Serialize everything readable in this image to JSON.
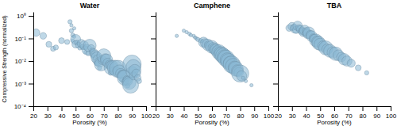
{
  "chart_data": [
    {
      "type": "scatter",
      "title": "Water",
      "xlabel": "Porosity (%)",
      "ylabel": "Compressive Strength (normalized)",
      "x": [
        22,
        27,
        31,
        34,
        36,
        40,
        44,
        46,
        47,
        47,
        48,
        48,
        49,
        49,
        50,
        50,
        51,
        52,
        53,
        54,
        55,
        56,
        57,
        57,
        58,
        59,
        60,
        61,
        62,
        62,
        63,
        64,
        65,
        65,
        66,
        67,
        67,
        68,
        69,
        70,
        71,
        72,
        73,
        74,
        75,
        75,
        76,
        77,
        78,
        79,
        80,
        81,
        82,
        83,
        83,
        84,
        85,
        85,
        86,
        87,
        87,
        88,
        89,
        90,
        90,
        91,
        91,
        92,
        93,
        94,
        95
      ],
      "values": [
        0.18,
        0.13,
        0.055,
        0.035,
        0.04,
        0.08,
        0.07,
        0.55,
        0.38,
        0.22,
        0.14,
        0.08,
        0.28,
        0.12,
        0.09,
        0.055,
        0.065,
        0.05,
        0.038,
        0.06,
        0.042,
        0.05,
        0.038,
        0.025,
        0.032,
        0.022,
        0.048,
        0.038,
        0.028,
        0.018,
        0.022,
        0.018,
        0.014,
        0.008,
        0.011,
        0.009,
        0.005,
        0.007,
        0.011,
        0.017,
        0.013,
        0.011,
        0.008,
        0.007,
        0.005,
        0.003,
        0.006,
        0.004,
        0.005,
        0.0038,
        0.0045,
        0.0035,
        0.0028,
        0.0025,
        0.0015,
        0.0022,
        0.0018,
        0.0012,
        0.0016,
        0.0013,
        0.0008,
        0.0011,
        0.00085,
        0.0072,
        0.0032,
        0.0055,
        0.0022,
        0.0038,
        0.0028,
        0.0018,
        0.0013
      ],
      "sizes": [
        8,
        7,
        6,
        5,
        5,
        6,
        5,
        4,
        3,
        4,
        4,
        3,
        3,
        3,
        12,
        8,
        5,
        6,
        4,
        9,
        5,
        10,
        4,
        3,
        12,
        5,
        16,
        7,
        6,
        4,
        10,
        11,
        14,
        5,
        13,
        12,
        4,
        16,
        10,
        18,
        11,
        15,
        12,
        10,
        17,
        5,
        14,
        7,
        20,
        9,
        23,
        16,
        12,
        10,
        5,
        15,
        20,
        7,
        7,
        11,
        4,
        17,
        21,
        25,
        14,
        19,
        9,
        15,
        10,
        7,
        5
      ],
      "color": "#8BB8D4",
      "log": "y",
      "grid": false,
      "xlim": [
        20,
        100
      ],
      "xticks": [
        20,
        30,
        40,
        50,
        60,
        70,
        80,
        90,
        100
      ],
      "ylim": [
        0.0001,
        1.5
      ],
      "yticks": [
        {
          "value": 0.0001,
          "label": "10⁻⁴"
        },
        {
          "value": 0.001,
          "label": "10⁻³"
        },
        {
          "value": 0.01,
          "label": "10⁻²"
        },
        {
          "value": 0.1,
          "label": "10⁻¹"
        },
        {
          "value": 1,
          "label": "10⁰"
        }
      ]
    },
    {
      "type": "scatter",
      "title": "Camphene",
      "xlabel": "Porosity (%)",
      "x": [
        35,
        40,
        42,
        44,
        45,
        47,
        48,
        49,
        50,
        52,
        53,
        54,
        55,
        56,
        57,
        58,
        59,
        60,
        61,
        62,
        63,
        64,
        65,
        66,
        67,
        68,
        69,
        70,
        71,
        72,
        73,
        74,
        75,
        76,
        77,
        78,
        79,
        80,
        81,
        82,
        84,
        88
      ],
      "values": [
        0.13,
        0.22,
        0.19,
        0.16,
        0.14,
        0.13,
        0.11,
        0.1,
        0.09,
        0.08,
        0.075,
        0.068,
        0.062,
        0.058,
        0.052,
        0.048,
        0.044,
        0.042,
        0.038,
        0.034,
        0.031,
        0.028,
        0.025,
        0.022,
        0.019,
        0.017,
        0.015,
        0.013,
        0.011,
        0.0095,
        0.008,
        0.007,
        0.006,
        0.0052,
        0.0045,
        0.0038,
        0.0032,
        0.0028,
        0.0022,
        0.0018,
        0.0013,
        0.00085
      ],
      "sizes": [
        3,
        3,
        3,
        3,
        3,
        3,
        3,
        3,
        4,
        4,
        3,
        12,
        10,
        4,
        14,
        11,
        3,
        16,
        13,
        13,
        15,
        12,
        19,
        17,
        20,
        20,
        19,
        22,
        19,
        21,
        18,
        23,
        20,
        16,
        19,
        14,
        11,
        23,
        12,
        3,
        3,
        3
      ],
      "color": "#8BB8D4",
      "log": "y",
      "grid": false,
      "tick_labels": "x",
      "xlim": [
        20,
        100
      ],
      "xticks": [
        20,
        30,
        40,
        50,
        60,
        70,
        80,
        90,
        100
      ],
      "ylim": [
        0.0001,
        1.5
      ],
      "yticks": [
        0.0001,
        0.001,
        0.01,
        0.1,
        1
      ]
    },
    {
      "type": "scatter",
      "title": "TBA",
      "xlabel": "Porosity (%)",
      "x": [
        28,
        30,
        31,
        32,
        33,
        34,
        35,
        36,
        37,
        38,
        39,
        40,
        41,
        42,
        43,
        44,
        45,
        46,
        47,
        48,
        49,
        50,
        52,
        54,
        55,
        57,
        59,
        61,
        63,
        65,
        67,
        69,
        72,
        77,
        83
      ],
      "values": [
        0.29,
        0.34,
        0.31,
        0.27,
        0.24,
        0.36,
        0.29,
        0.25,
        0.21,
        0.19,
        0.23,
        0.2,
        0.16,
        0.18,
        0.145,
        0.125,
        0.105,
        0.095,
        0.082,
        0.072,
        0.062,
        0.055,
        0.045,
        0.038,
        0.033,
        0.028,
        0.024,
        0.021,
        0.018,
        0.015,
        0.012,
        0.01,
        0.008,
        0.005,
        0.003
      ],
      "sizes": [
        7,
        9,
        6,
        10,
        8,
        11,
        7,
        9,
        8,
        10,
        12,
        9,
        11,
        14,
        10,
        13,
        9,
        11,
        16,
        14,
        17,
        15,
        13,
        18,
        13,
        16,
        14,
        17,
        13,
        11,
        14,
        12,
        9,
        6,
        4
      ],
      "color": "#8BB8D4",
      "log": "y",
      "grid": false,
      "tick_labels": "x",
      "xlim": [
        20,
        100
      ],
      "xticks": [
        20,
        30,
        40,
        50,
        60,
        70,
        80,
        90,
        100
      ],
      "ylim": [
        0.0001,
        1.5
      ],
      "yticks": [
        0.0001,
        0.001,
        0.01,
        0.1,
        1
      ]
    }
  ]
}
